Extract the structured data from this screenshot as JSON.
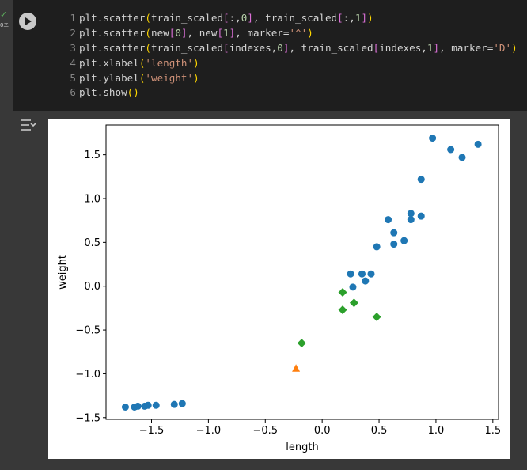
{
  "cell": {
    "status_icon": "check-icon",
    "exec_time": "0초",
    "run_icon": "play-icon",
    "lines": [
      [
        {
          "t": "plt.scatter",
          "c": ""
        },
        {
          "t": "(",
          "c": "p"
        },
        {
          "t": "train_scaled",
          "c": ""
        },
        {
          "t": "[",
          "c": "p2"
        },
        {
          "t": ":,",
          "c": ""
        },
        {
          "t": "0",
          "c": "n"
        },
        {
          "t": "]",
          "c": "p2"
        },
        {
          "t": ", train_scaled",
          "c": ""
        },
        {
          "t": "[",
          "c": "p2"
        },
        {
          "t": ":,",
          "c": ""
        },
        {
          "t": "1",
          "c": "n"
        },
        {
          "t": "]",
          "c": "p2"
        },
        {
          "t": ")",
          "c": "p"
        }
      ],
      [
        {
          "t": "plt.scatter",
          "c": ""
        },
        {
          "t": "(",
          "c": "p"
        },
        {
          "t": "new",
          "c": ""
        },
        {
          "t": "[",
          "c": "p2"
        },
        {
          "t": "0",
          "c": "n"
        },
        {
          "t": "]",
          "c": "p2"
        },
        {
          "t": ", new",
          "c": ""
        },
        {
          "t": "[",
          "c": "p2"
        },
        {
          "t": "1",
          "c": "n"
        },
        {
          "t": "]",
          "c": "p2"
        },
        {
          "t": ", marker=",
          "c": ""
        },
        {
          "t": "'^'",
          "c": "s"
        },
        {
          "t": ")",
          "c": "p"
        }
      ],
      [
        {
          "t": "plt.scatter",
          "c": ""
        },
        {
          "t": "(",
          "c": "p"
        },
        {
          "t": "train_scaled",
          "c": ""
        },
        {
          "t": "[",
          "c": "p2"
        },
        {
          "t": "indexes,",
          "c": ""
        },
        {
          "t": "0",
          "c": "n"
        },
        {
          "t": "]",
          "c": "p2"
        },
        {
          "t": ", train_scaled",
          "c": ""
        },
        {
          "t": "[",
          "c": "p2"
        },
        {
          "t": "indexes,",
          "c": ""
        },
        {
          "t": "1",
          "c": "n"
        },
        {
          "t": "]",
          "c": "p2"
        },
        {
          "t": ", marker=",
          "c": ""
        },
        {
          "t": "'D'",
          "c": "s"
        },
        {
          "t": ")",
          "c": "p"
        }
      ],
      [
        {
          "t": "plt.xlabel",
          "c": ""
        },
        {
          "t": "(",
          "c": "p"
        },
        {
          "t": "'length'",
          "c": "s"
        },
        {
          "t": ")",
          "c": "p"
        }
      ],
      [
        {
          "t": "plt.ylabel",
          "c": ""
        },
        {
          "t": "(",
          "c": "p"
        },
        {
          "t": "'weight'",
          "c": "s"
        },
        {
          "t": ")",
          "c": "p"
        }
      ],
      [
        {
          "t": "plt.show",
          "c": ""
        },
        {
          "t": "()",
          "c": "p"
        }
      ]
    ]
  },
  "output": {
    "toggle_icon": "output-options-icon"
  },
  "chart_data": {
    "type": "scatter",
    "xlabel": "length",
    "ylabel": "weight",
    "xlim": [
      -1.9,
      1.55
    ],
    "ylim": [
      -1.52,
      1.84
    ],
    "xticks": [
      -1.5,
      -1.0,
      -0.5,
      0.0,
      0.5,
      1.0,
      1.5
    ],
    "xtick_labels": [
      "−1.5",
      "−1.0",
      "−0.5",
      "0.0",
      "0.5",
      "1.0",
      "1.5"
    ],
    "yticks": [
      -1.5,
      -1.0,
      -0.5,
      0.0,
      0.5,
      1.0,
      1.5
    ],
    "ytick_labels": [
      "−1.5",
      "−1.0",
      "−0.5",
      "0.0",
      "0.5",
      "1.0",
      "1.5"
    ],
    "grid": false,
    "series": [
      {
        "marker": "circle",
        "color": "#1f77b4",
        "points": [
          [
            -1.73,
            -1.38
          ],
          [
            -1.65,
            -1.38
          ],
          [
            -1.62,
            -1.37
          ],
          [
            -1.56,
            -1.37
          ],
          [
            -1.53,
            -1.36
          ],
          [
            -1.46,
            -1.36
          ],
          [
            -1.3,
            -1.35
          ],
          [
            -1.23,
            -1.34
          ],
          [
            0.25,
            0.14
          ],
          [
            0.27,
            -0.01
          ],
          [
            0.35,
            0.14
          ],
          [
            0.38,
            0.06
          ],
          [
            0.43,
            0.14
          ],
          [
            0.48,
            0.45
          ],
          [
            0.58,
            0.76
          ],
          [
            0.63,
            0.61
          ],
          [
            0.63,
            0.48
          ],
          [
            0.72,
            0.52
          ],
          [
            0.78,
            0.76
          ],
          [
            0.78,
            0.83
          ],
          [
            0.87,
            0.8
          ],
          [
            0.87,
            1.22
          ],
          [
            0.97,
            1.69
          ],
          [
            1.13,
            1.56
          ],
          [
            1.23,
            1.47
          ],
          [
            1.37,
            1.62
          ]
        ]
      },
      {
        "marker": "triangle",
        "color": "#ff7f0e",
        "points": [
          [
            -0.23,
            -0.94
          ]
        ]
      },
      {
        "marker": "diamond",
        "color": "#2ca02c",
        "points": [
          [
            -0.18,
            -0.65
          ],
          [
            0.18,
            -0.07
          ],
          [
            0.18,
            -0.27
          ],
          [
            0.28,
            -0.19
          ],
          [
            0.48,
            -0.35
          ]
        ]
      }
    ]
  }
}
